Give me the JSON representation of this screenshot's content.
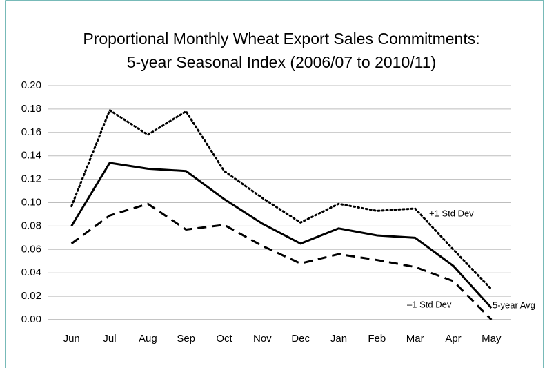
{
  "chart_data": {
    "type": "line",
    "title": [
      "Proportional Monthly Wheat Export Sales Commitments:",
      "5-year Seasonal Index (2006/07 to 2010/11)"
    ],
    "categories": [
      "Jun",
      "Jul",
      "Aug",
      "Sep",
      "Oct",
      "Nov",
      "Dec",
      "Jan",
      "Feb",
      "Mar",
      "Apr",
      "May"
    ],
    "series": [
      {
        "name": "+1 Std Dev",
        "color": "#000000",
        "dash": "dotted",
        "values": [
          0.097,
          0.179,
          0.158,
          0.178,
          0.127,
          0.104,
          0.083,
          0.099,
          0.093,
          0.095,
          0.06,
          0.026
        ]
      },
      {
        "name": "5-year Avg",
        "color": "#000000",
        "dash": "solid",
        "values": [
          0.08,
          0.134,
          0.129,
          0.127,
          0.103,
          0.082,
          0.065,
          0.078,
          0.072,
          0.07,
          0.046,
          0.01
        ]
      },
      {
        "name": "–1 Std Dev",
        "color": "#000000",
        "dash": "dashed",
        "values": [
          0.065,
          0.089,
          0.099,
          0.077,
          0.081,
          0.063,
          0.048,
          0.056,
          0.051,
          0.045,
          0.033,
          0.0
        ]
      }
    ],
    "ylim": [
      0,
      0.2
    ],
    "yticks": [
      {
        "value": 0,
        "label": "0.00"
      },
      {
        "value": 0.02,
        "label": "0.02"
      },
      {
        "value": 0.04,
        "label": "0.04"
      },
      {
        "value": 0.06,
        "label": "0.06"
      },
      {
        "value": 0.08,
        "label": "0.08"
      },
      {
        "value": 0.1,
        "label": "0.10"
      },
      {
        "value": 0.12,
        "label": "0.12"
      },
      {
        "value": 0.14,
        "label": "0.14"
      },
      {
        "value": 0.16,
        "label": "0.16"
      },
      {
        "value": 0.18,
        "label": "0.18"
      },
      {
        "value": 0.2,
        "label": "0.20"
      }
    ],
    "grid": true
  }
}
